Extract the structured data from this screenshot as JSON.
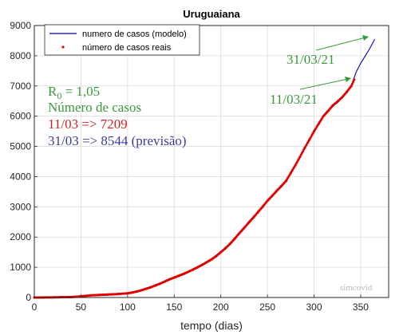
{
  "chart_data": {
    "type": "line",
    "title": "Uruguaiana",
    "xlabel": "tempo (dias)",
    "ylabel": "",
    "xlim": [
      0,
      380
    ],
    "ylim": [
      0,
      9000
    ],
    "xticks": [
      0,
      50,
      100,
      150,
      200,
      250,
      300,
      350
    ],
    "yticks": [
      0,
      1000,
      2000,
      3000,
      4000,
      5000,
      6000,
      7000,
      8000,
      9000
    ],
    "grid": true,
    "legend_position": "top-left",
    "series": [
      {
        "name": "numero de casos (modelo)",
        "style": "line",
        "color": "#0000cc",
        "x": [
          0,
          20,
          40,
          50,
          60,
          80,
          100,
          110,
          120,
          130,
          140,
          150,
          160,
          170,
          180,
          190,
          200,
          210,
          220,
          230,
          240,
          250,
          260,
          270,
          280,
          290,
          300,
          310,
          320,
          330,
          340,
          345,
          350,
          355,
          360,
          365
        ],
        "y": [
          0,
          5,
          15,
          40,
          70,
          100,
          140,
          200,
          290,
          400,
          530,
          660,
          780,
          920,
          1080,
          1260,
          1500,
          1780,
          2130,
          2480,
          2830,
          3200,
          3530,
          3860,
          4380,
          4950,
          5500,
          6000,
          6350,
          6620,
          7000,
          7450,
          7750,
          8000,
          8250,
          8544
        ]
      },
      {
        "name": "número de casos reais",
        "style": "markers",
        "color": "#e00000",
        "x": [
          0,
          10,
          20,
          30,
          40,
          45,
          50,
          55,
          60,
          70,
          80,
          90,
          100,
          105,
          110,
          115,
          120,
          125,
          130,
          135,
          140,
          145,
          150,
          155,
          160,
          165,
          170,
          175,
          180,
          185,
          190,
          195,
          200,
          205,
          210,
          215,
          220,
          225,
          230,
          235,
          240,
          245,
          250,
          255,
          260,
          265,
          270,
          275,
          280,
          285,
          290,
          295,
          300,
          305,
          310,
          315,
          320,
          325,
          330,
          335,
          340,
          343
        ],
        "y": [
          0,
          2,
          5,
          10,
          15,
          25,
          40,
          55,
          70,
          85,
          100,
          115,
          140,
          165,
          200,
          240,
          290,
          340,
          400,
          460,
          530,
          600,
          660,
          720,
          780,
          850,
          920,
          1000,
          1080,
          1170,
          1260,
          1370,
          1500,
          1630,
          1780,
          1950,
          2130,
          2300,
          2480,
          2650,
          2830,
          3010,
          3200,
          3360,
          3530,
          3690,
          3860,
          4120,
          4380,
          4660,
          4950,
          5220,
          5500,
          5750,
          6000,
          6170,
          6350,
          6480,
          6620,
          6800,
          7000,
          7209
        ]
      }
    ],
    "annotations": [
      {
        "text": "31/03/21",
        "color": "#3a9a3a"
      },
      {
        "text": "11/03/21",
        "color": "#3a9a3a"
      }
    ]
  },
  "info_box": {
    "r0_prefix": "R",
    "r0_subscript": "0",
    "r0_value": " = 1,05",
    "cases_heading": "Número de casos",
    "line_real": "11/03 => 7209",
    "line_forecast": "31/03 => 8544 (previsão)",
    "color_green": "#3a9a3a",
    "color_red": "#cc2222",
    "color_blue": "#3c3c9c"
  },
  "watermark": "simcovid"
}
